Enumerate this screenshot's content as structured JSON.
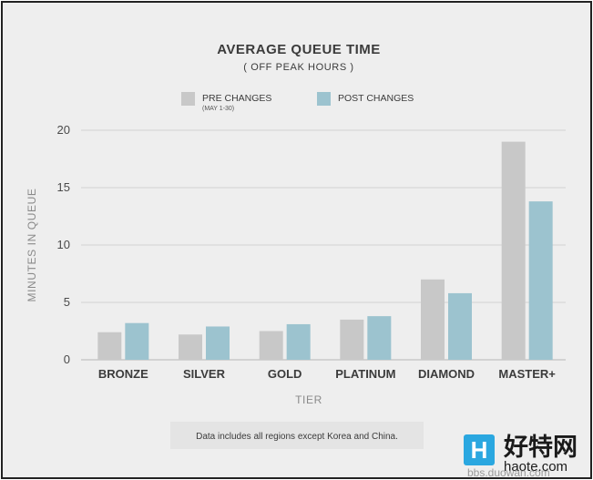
{
  "chart_data": {
    "type": "bar",
    "title": "AVERAGE QUEUE TIME",
    "subtitle": "( OFF PEAK HOURS )",
    "xlabel": "TIER",
    "ylabel": "MINUTES IN QUEUE",
    "categories": [
      "BRONZE",
      "SILVER",
      "GOLD",
      "PLATINUM",
      "DIAMOND",
      "MASTER+"
    ],
    "series": [
      {
        "name": "PRE CHANGES",
        "note": "(MAY 1-30)",
        "color": "#c8c8c8",
        "values": [
          2.4,
          2.2,
          2.5,
          3.5,
          7.0,
          19.0
        ]
      },
      {
        "name": "POST CHANGES",
        "note": "",
        "color": "#9cc3cf",
        "values": [
          3.2,
          2.9,
          3.1,
          3.8,
          5.8,
          13.8
        ]
      }
    ],
    "ylim": [
      0,
      20
    ],
    "yticks": [
      0,
      5,
      10,
      15,
      20
    ],
    "grid": true,
    "legend_position": "top-center"
  },
  "footnote": "Data includes all regions except Korea and China.",
  "watermark": {
    "logo_letter": "H",
    "name": "好特网",
    "url": "haote.com",
    "overlay": "bbs.duowan.com"
  }
}
